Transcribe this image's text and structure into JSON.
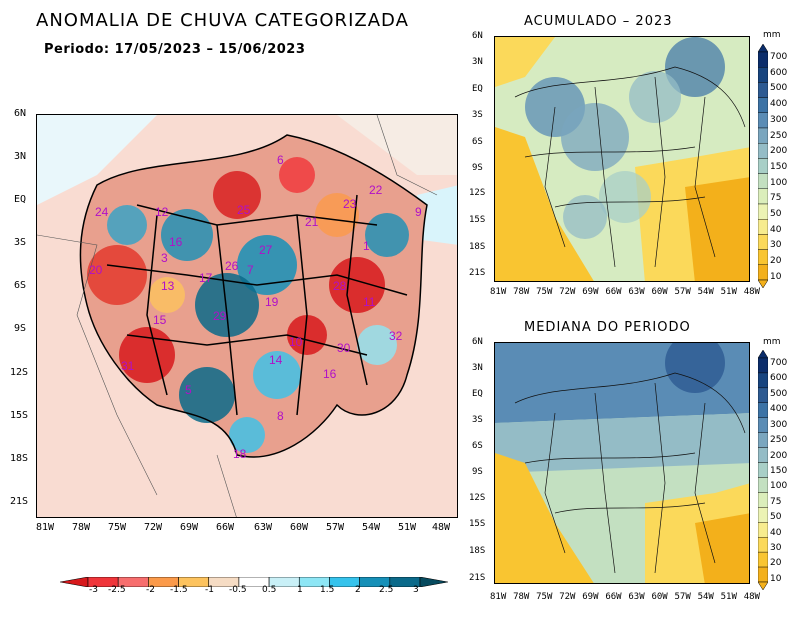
{
  "main": {
    "title": "ANOMALIA DE CHUVA CATEGORIZADA",
    "period": "Periodo: 17/05/2023 – 15/06/2023",
    "lat_ticks": [
      "6N",
      "3N",
      "EQ",
      "3S",
      "6S",
      "9S",
      "12S",
      "15S",
      "18S",
      "21S"
    ],
    "lon_ticks": [
      "81W",
      "78W",
      "75W",
      "72W",
      "69W",
      "66W",
      "63W",
      "60W",
      "57W",
      "54W",
      "51W",
      "48W"
    ],
    "basins": [
      "6",
      "22",
      "23",
      "24",
      "12",
      "25",
      "21",
      "9",
      "16",
      "3",
      "1",
      "17",
      "27",
      "7",
      "26",
      "28",
      "20",
      "13",
      "19",
      "11",
      "15",
      "29",
      "14",
      "32",
      "30",
      "10",
      "31",
      "16",
      "5",
      "8",
      "18"
    ],
    "colorbar": {
      "labels": [
        "-3",
        "-2.5",
        "-2",
        "-1.5",
        "-1",
        "-0.5",
        "0.5",
        "1",
        "1.5",
        "2",
        "2.5",
        "3"
      ],
      "colors": [
        "#d7191c",
        "#f0353a",
        "#f76e6e",
        "#fb9a4a",
        "#fdc35e",
        "#f6dcc4",
        "#ffffff",
        "#c9f0f7",
        "#8de6f5",
        "#36c3ec",
        "#1690b8",
        "#0b6a8a",
        "#064a5e"
      ]
    }
  },
  "acumulado": {
    "title": "ACUMULADO – 2023",
    "lat_ticks": [
      "6N",
      "3N",
      "EQ",
      "3S",
      "6S",
      "9S",
      "12S",
      "15S",
      "18S",
      "21S"
    ],
    "lon_ticks": [
      "81W",
      "78W",
      "75W",
      "72W",
      "69W",
      "66W",
      "63W",
      "60W",
      "57W",
      "54W",
      "51W",
      "48W"
    ]
  },
  "mediana": {
    "title": "MEDIANA DO PERIODO",
    "lat_ticks": [
      "6N",
      "3N",
      "EQ",
      "3S",
      "6S",
      "9S",
      "12S",
      "15S",
      "18S",
      "21S"
    ],
    "lon_ticks": [
      "81W",
      "78W",
      "75W",
      "72W",
      "69W",
      "66W",
      "63W",
      "60W",
      "57W",
      "54W",
      "51W",
      "48W"
    ]
  },
  "mm_scale": {
    "unit": "mm",
    "labels": [
      "700",
      "600",
      "500",
      "400",
      "300",
      "250",
      "200",
      "150",
      "100",
      "75",
      "50",
      "40",
      "30",
      "20",
      "10"
    ],
    "colors": [
      "#0b2d6b",
      "#17447f",
      "#2d5a92",
      "#3c73a6",
      "#5a8cb5",
      "#7aa6bf",
      "#94bcc6",
      "#a8cfc7",
      "#c3e0c1",
      "#dbeebb",
      "#ecf3b4",
      "#f7ec8e",
      "#fbd95a",
      "#f9c531",
      "#f3b01b"
    ]
  }
}
